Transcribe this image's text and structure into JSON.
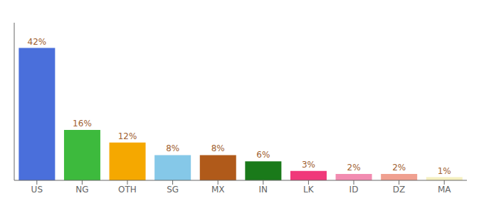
{
  "chart_data": {
    "type": "bar",
    "categories": [
      "US",
      "NG",
      "OTH",
      "SG",
      "MX",
      "IN",
      "LK",
      "ID",
      "DZ",
      "MA"
    ],
    "values": [
      42,
      16,
      12,
      8,
      8,
      6,
      3,
      2,
      2,
      1
    ],
    "value_labels": [
      "42%",
      "16%",
      "12%",
      "8%",
      "8%",
      "6%",
      "3%",
      "2%",
      "2%",
      "1%"
    ],
    "colors": [
      "#4a6fdb",
      "#3dba3d",
      "#f5a800",
      "#85c8e8",
      "#b05a1a",
      "#1a7a1a",
      "#f0397a",
      "#f28cb1",
      "#f0a090",
      "#f5f0c0"
    ],
    "ylim": [
      0,
      50
    ],
    "data_labels": true,
    "tick_labels": "x",
    "grid": false
  }
}
